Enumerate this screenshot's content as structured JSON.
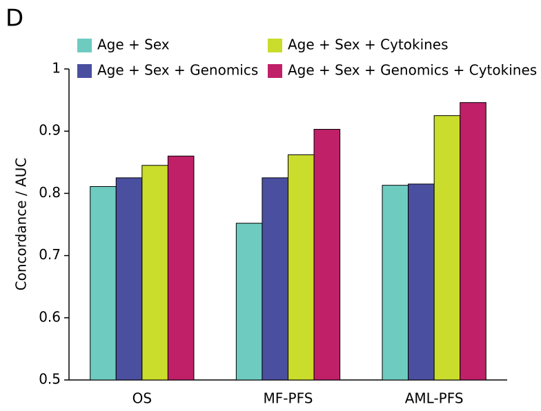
{
  "panel_label": "D",
  "chart_data": {
    "type": "bar",
    "y_label": "Concordance / AUC",
    "categories": [
      "OS",
      "MF-PFS",
      "AML-PFS"
    ],
    "series": [
      {
        "name": "Age + Sex",
        "color": "#6ecbc0",
        "values": [
          0.811,
          0.752,
          0.813
        ]
      },
      {
        "name": "Age + Sex + Genomics",
        "color": "#4b4fa0",
        "values": [
          0.825,
          0.825,
          0.815
        ]
      },
      {
        "name": "Age + Sex + Cytokines",
        "color": "#cadc2c",
        "values": [
          0.845,
          0.862,
          0.925
        ]
      },
      {
        "name": "Age + Sex + Genomics + Cytokines",
        "color": "#c02068",
        "values": [
          0.86,
          0.903,
          0.946
        ]
      }
    ],
    "ylim": [
      0.5,
      1
    ],
    "yticks": [
      0.5,
      0.6,
      0.7,
      0.8,
      0.9,
      1
    ]
  }
}
